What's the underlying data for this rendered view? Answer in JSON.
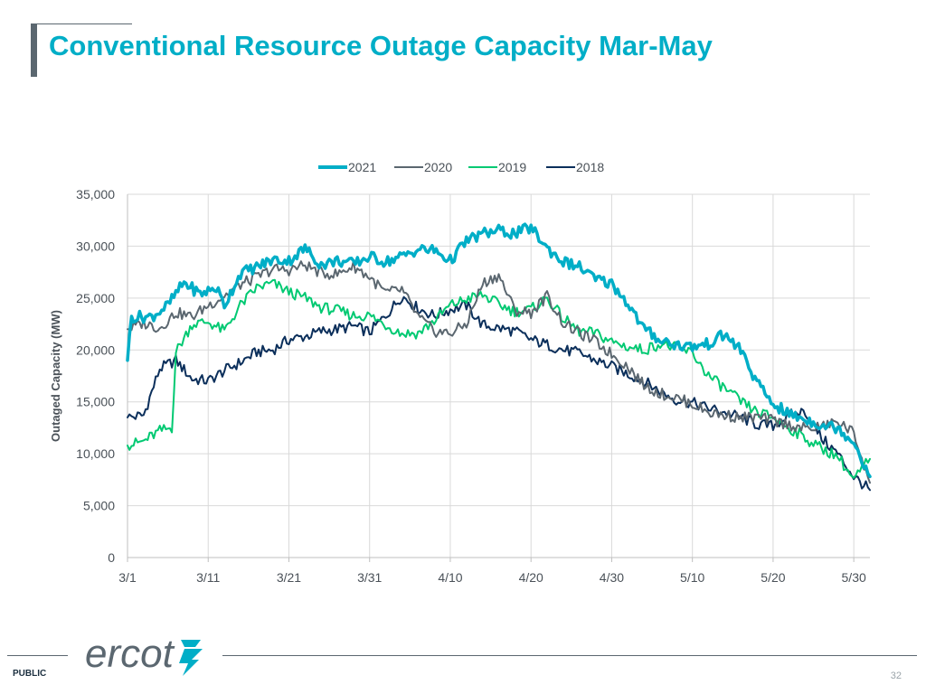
{
  "slide": {
    "title": "Conventional Resource Outage Capacity Mar-May",
    "footer_label": "PUBLIC",
    "page_number": "32",
    "logo_text": "ercot"
  },
  "chart_data": {
    "type": "line",
    "title": "",
    "xlabel": "",
    "ylabel": "Outaged Capacity (MW)",
    "ylim": [
      0,
      35000
    ],
    "yticks": [
      0,
      5000,
      10000,
      15000,
      20000,
      25000,
      30000,
      35000
    ],
    "ytick_labels": [
      "0",
      "5,000",
      "10,000",
      "15,000",
      "20,000",
      "25,000",
      "30,000",
      "35,000"
    ],
    "xlim": [
      0,
      92
    ],
    "xticks": [
      0,
      10,
      20,
      30,
      40,
      50,
      60,
      70,
      80,
      90
    ],
    "xtick_labels": [
      "3/1",
      "3/11",
      "3/21",
      "3/31",
      "4/10",
      "4/20",
      "4/30",
      "5/10",
      "5/20",
      "5/30"
    ],
    "grid": true,
    "legend_position": "top-center",
    "x_unit": "days since 3/1",
    "series": [
      {
        "name": "2021",
        "color": "#00aec7",
        "points": [
          [
            0,
            19000
          ],
          [
            0.5,
            23200
          ],
          [
            3,
            23200
          ],
          [
            5,
            24300
          ],
          [
            7,
            26500
          ],
          [
            9,
            25400
          ],
          [
            11,
            26000
          ],
          [
            12,
            24300
          ],
          [
            14,
            27400
          ],
          [
            16,
            28000
          ],
          [
            18,
            28700
          ],
          [
            20,
            28600
          ],
          [
            22,
            29800
          ],
          [
            24,
            28200
          ],
          [
            26,
            28600
          ],
          [
            28,
            28300
          ],
          [
            30,
            29000
          ],
          [
            32,
            28500
          ],
          [
            34,
            29000
          ],
          [
            36,
            29700
          ],
          [
            38,
            29600
          ],
          [
            40,
            28600
          ],
          [
            42,
            30500
          ],
          [
            44,
            31200
          ],
          [
            46,
            31500
          ],
          [
            48,
            31200
          ],
          [
            50,
            31800
          ],
          [
            52,
            29800
          ],
          [
            54,
            28500
          ],
          [
            56,
            28000
          ],
          [
            58,
            26800
          ],
          [
            60,
            26400
          ],
          [
            62,
            24500
          ],
          [
            64,
            22000
          ],
          [
            66,
            21000
          ],
          [
            68,
            20500
          ],
          [
            70,
            20300
          ],
          [
            72,
            20600
          ],
          [
            74,
            21500
          ],
          [
            76,
            20000
          ],
          [
            78,
            16800
          ],
          [
            80,
            14800
          ],
          [
            82,
            13800
          ],
          [
            84,
            13300
          ],
          [
            86,
            12800
          ],
          [
            88,
            12500
          ],
          [
            90,
            11200
          ],
          [
            92,
            7800
          ]
        ]
      },
      {
        "name": "2020",
        "color": "#5b6770",
        "points": [
          [
            0,
            22000
          ],
          [
            2,
            22600
          ],
          [
            4,
            22100
          ],
          [
            6,
            23600
          ],
          [
            8,
            23200
          ],
          [
            10,
            24300
          ],
          [
            12,
            25200
          ],
          [
            14,
            26300
          ],
          [
            16,
            27000
          ],
          [
            18,
            27800
          ],
          [
            20,
            27700
          ],
          [
            22,
            28200
          ],
          [
            24,
            27400
          ],
          [
            26,
            27300
          ],
          [
            28,
            28100
          ],
          [
            30,
            27000
          ],
          [
            32,
            25500
          ],
          [
            34,
            25800
          ],
          [
            36,
            23200
          ],
          [
            38,
            21800
          ],
          [
            40,
            21600
          ],
          [
            42,
            22500
          ],
          [
            44,
            26400
          ],
          [
            46,
            27200
          ],
          [
            48,
            23800
          ],
          [
            50,
            23600
          ],
          [
            52,
            25200
          ],
          [
            54,
            22600
          ],
          [
            56,
            21600
          ],
          [
            58,
            20800
          ],
          [
            60,
            19600
          ],
          [
            62,
            18400
          ],
          [
            64,
            16600
          ],
          [
            66,
            15800
          ],
          [
            68,
            15400
          ],
          [
            70,
            14800
          ],
          [
            72,
            14000
          ],
          [
            74,
            13700
          ],
          [
            76,
            13500
          ],
          [
            78,
            13500
          ],
          [
            80,
            13200
          ],
          [
            82,
            12800
          ],
          [
            84,
            12400
          ],
          [
            86,
            12600
          ],
          [
            88,
            13100
          ],
          [
            90,
            12000
          ],
          [
            92,
            7200
          ]
        ]
      },
      {
        "name": "2019",
        "color": "#00c972",
        "points": [
          [
            0,
            10800
          ],
          [
            2,
            11200
          ],
          [
            4,
            12200
          ],
          [
            5.5,
            12500
          ],
          [
            6,
            19800
          ],
          [
            8,
            22500
          ],
          [
            10,
            22700
          ],
          [
            12,
            21800
          ],
          [
            14,
            24300
          ],
          [
            16,
            26000
          ],
          [
            18,
            26400
          ],
          [
            20,
            25600
          ],
          [
            22,
            25000
          ],
          [
            24,
            24100
          ],
          [
            26,
            23800
          ],
          [
            28,
            23300
          ],
          [
            30,
            23300
          ],
          [
            32,
            22400
          ],
          [
            34,
            21600
          ],
          [
            36,
            21600
          ],
          [
            38,
            22800
          ],
          [
            40,
            24300
          ],
          [
            42,
            24900
          ],
          [
            44,
            25300
          ],
          [
            46,
            24400
          ],
          [
            48,
            23700
          ],
          [
            50,
            23900
          ],
          [
            52,
            25000
          ],
          [
            54,
            23000
          ],
          [
            56,
            21800
          ],
          [
            58,
            21600
          ],
          [
            60,
            20800
          ],
          [
            62,
            20300
          ],
          [
            64,
            20000
          ],
          [
            66,
            20600
          ],
          [
            68,
            20200
          ],
          [
            70,
            19700
          ],
          [
            72,
            17500
          ],
          [
            74,
            16300
          ],
          [
            76,
            15000
          ],
          [
            78,
            14000
          ],
          [
            80,
            13500
          ],
          [
            82,
            12500
          ],
          [
            84,
            11500
          ],
          [
            86,
            10500
          ],
          [
            88,
            9800
          ],
          [
            90,
            7500
          ],
          [
            92,
            9500
          ]
        ]
      },
      {
        "name": "2018",
        "color": "#0b2f5b",
        "points": [
          [
            0,
            13500
          ],
          [
            2,
            13700
          ],
          [
            4,
            18200
          ],
          [
            6,
            19000
          ],
          [
            8,
            17200
          ],
          [
            10,
            17000
          ],
          [
            12,
            18000
          ],
          [
            14,
            18800
          ],
          [
            16,
            19800
          ],
          [
            18,
            20000
          ],
          [
            20,
            21000
          ],
          [
            22,
            21300
          ],
          [
            24,
            21800
          ],
          [
            26,
            22000
          ],
          [
            28,
            22300
          ],
          [
            30,
            21700
          ],
          [
            32,
            23300
          ],
          [
            34,
            25200
          ],
          [
            36,
            24000
          ],
          [
            38,
            23300
          ],
          [
            40,
            23900
          ],
          [
            42,
            24300
          ],
          [
            44,
            22400
          ],
          [
            46,
            22100
          ],
          [
            48,
            21800
          ],
          [
            50,
            21000
          ],
          [
            52,
            20500
          ],
          [
            54,
            20000
          ],
          [
            56,
            19700
          ],
          [
            58,
            19000
          ],
          [
            60,
            18400
          ],
          [
            62,
            17700
          ],
          [
            64,
            17000
          ],
          [
            66,
            16000
          ],
          [
            68,
            15200
          ],
          [
            70,
            14900
          ],
          [
            72,
            14400
          ],
          [
            74,
            14000
          ],
          [
            76,
            13500
          ],
          [
            78,
            12800
          ],
          [
            80,
            12700
          ],
          [
            82,
            13700
          ],
          [
            84,
            14100
          ],
          [
            86,
            11500
          ],
          [
            88,
            10000
          ],
          [
            90,
            7800
          ],
          [
            92,
            6500
          ]
        ]
      }
    ]
  }
}
